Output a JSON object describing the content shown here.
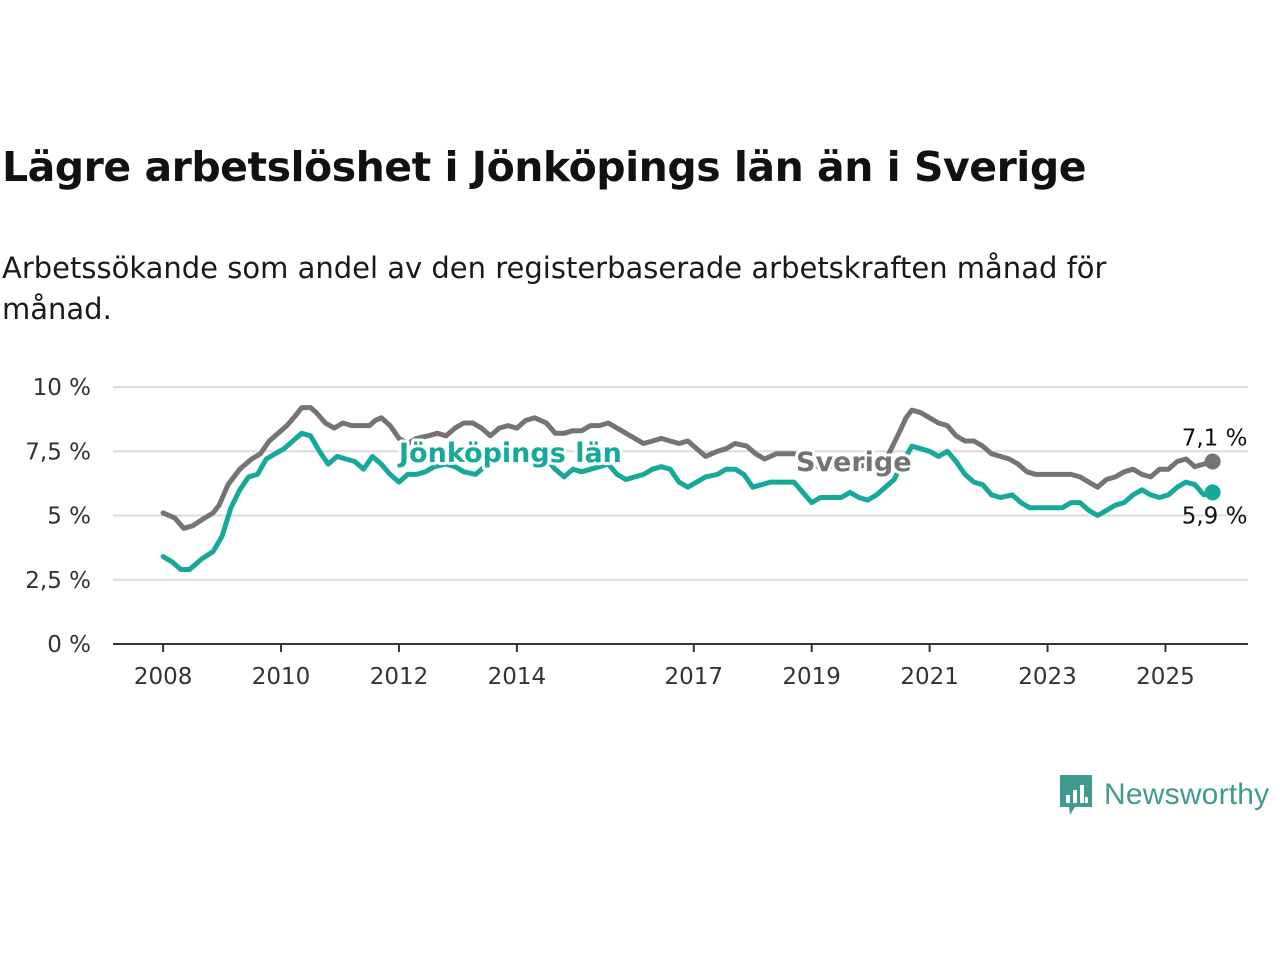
{
  "title": "Lägre arbetslöshet i Jönköpings län än i Sverige",
  "subtitle": "Arbetssökande som andel av den registerbaserade arbetskraften månad för månad.",
  "brand": "Newsworthy",
  "chart_data": {
    "type": "line",
    "ylim": [
      0,
      10
    ],
    "y_ticks": [
      {
        "value": 0,
        "label": "0 %"
      },
      {
        "value": 2.5,
        "label": "2,5 %"
      },
      {
        "value": 5,
        "label": "5 %"
      },
      {
        "value": 7.5,
        "label": "7,5 %"
      },
      {
        "value": 10,
        "label": "10 %"
      }
    ],
    "xlim": [
      2007.15,
      2026.4
    ],
    "x_ticks": [
      {
        "value": 2008,
        "label": "2008"
      },
      {
        "value": 2010,
        "label": "2010"
      },
      {
        "value": 2012,
        "label": "2012"
      },
      {
        "value": 2014,
        "label": "2014"
      },
      {
        "value": 2017,
        "label": "2017"
      },
      {
        "value": 2019,
        "label": "2019"
      },
      {
        "value": 2021,
        "label": "2021"
      },
      {
        "value": 2023,
        "label": "2023"
      },
      {
        "value": 2025,
        "label": "2025"
      }
    ],
    "grid": true,
    "series": [
      {
        "name": "Sverige",
        "color": "#747474",
        "end_label": "7,1 %",
        "points": [
          [
            2008.0,
            5.1
          ],
          [
            2008.2,
            4.9
          ],
          [
            2008.35,
            4.5
          ],
          [
            2008.5,
            4.6
          ],
          [
            2008.7,
            4.9
          ],
          [
            2008.85,
            5.1
          ],
          [
            2008.95,
            5.4
          ],
          [
            2009.1,
            6.2
          ],
          [
            2009.3,
            6.8
          ],
          [
            2009.5,
            7.2
          ],
          [
            2009.65,
            7.4
          ],
          [
            2009.8,
            7.9
          ],
          [
            2009.95,
            8.2
          ],
          [
            2010.1,
            8.5
          ],
          [
            2010.25,
            8.9
          ],
          [
            2010.35,
            9.2
          ],
          [
            2010.5,
            9.2
          ],
          [
            2010.6,
            9.0
          ],
          [
            2010.75,
            8.6
          ],
          [
            2010.9,
            8.4
          ],
          [
            2011.05,
            8.6
          ],
          [
            2011.2,
            8.5
          ],
          [
            2011.35,
            8.5
          ],
          [
            2011.5,
            8.5
          ],
          [
            2011.6,
            8.7
          ],
          [
            2011.7,
            8.8
          ],
          [
            2011.85,
            8.5
          ],
          [
            2012.0,
            8.0
          ],
          [
            2012.15,
            7.8
          ],
          [
            2012.3,
            8.0
          ],
          [
            2012.5,
            8.1
          ],
          [
            2012.65,
            8.2
          ],
          [
            2012.8,
            8.1
          ],
          [
            2012.95,
            8.4
          ],
          [
            2013.1,
            8.6
          ],
          [
            2013.25,
            8.6
          ],
          [
            2013.4,
            8.4
          ],
          [
            2013.55,
            8.1
          ],
          [
            2013.7,
            8.4
          ],
          [
            2013.85,
            8.5
          ],
          [
            2014.0,
            8.4
          ],
          [
            2014.15,
            8.7
          ],
          [
            2014.3,
            8.8
          ],
          [
            2014.5,
            8.6
          ],
          [
            2014.65,
            8.2
          ],
          [
            2014.8,
            8.2
          ],
          [
            2014.95,
            8.3
          ],
          [
            2015.1,
            8.3
          ],
          [
            2015.25,
            8.5
          ],
          [
            2015.4,
            8.5
          ],
          [
            2015.55,
            8.6
          ],
          [
            2015.7,
            8.4
          ],
          [
            2015.85,
            8.2
          ],
          [
            2016.0,
            8.0
          ],
          [
            2016.15,
            7.8
          ],
          [
            2016.3,
            7.9
          ],
          [
            2016.45,
            8.0
          ],
          [
            2016.6,
            7.9
          ],
          [
            2016.75,
            7.8
          ],
          [
            2016.9,
            7.9
          ],
          [
            2017.05,
            7.6
          ],
          [
            2017.2,
            7.3
          ],
          [
            2017.4,
            7.5
          ],
          [
            2017.55,
            7.6
          ],
          [
            2017.7,
            7.8
          ],
          [
            2017.9,
            7.7
          ],
          [
            2018.05,
            7.4
          ],
          [
            2018.2,
            7.2
          ],
          [
            2018.4,
            7.4
          ],
          [
            2018.55,
            7.4
          ],
          [
            2018.7,
            7.4
          ],
          [
            2018.85,
            7.3
          ],
          [
            2019.0,
            7.2
          ],
          [
            2019.15,
            6.8
          ],
          [
            2019.3,
            6.9
          ],
          [
            2019.5,
            7.0
          ],
          [
            2019.65,
            7.0
          ],
          [
            2019.8,
            6.9
          ],
          [
            2019.95,
            7.0
          ],
          [
            2020.1,
            7.0
          ],
          [
            2020.2,
            6.9
          ],
          [
            2020.35,
            7.6
          ],
          [
            2020.5,
            8.3
          ],
          [
            2020.6,
            8.8
          ],
          [
            2020.7,
            9.1
          ],
          [
            2020.85,
            9.0
          ],
          [
            2021.0,
            8.8
          ],
          [
            2021.15,
            8.6
          ],
          [
            2021.3,
            8.5
          ],
          [
            2021.45,
            8.1
          ],
          [
            2021.6,
            7.9
          ],
          [
            2021.75,
            7.9
          ],
          [
            2021.9,
            7.7
          ],
          [
            2022.05,
            7.4
          ],
          [
            2022.2,
            7.3
          ],
          [
            2022.35,
            7.2
          ],
          [
            2022.5,
            7.0
          ],
          [
            2022.65,
            6.7
          ],
          [
            2022.8,
            6.6
          ],
          [
            2022.95,
            6.6
          ],
          [
            2023.1,
            6.6
          ],
          [
            2023.25,
            6.6
          ],
          [
            2023.4,
            6.6
          ],
          [
            2023.55,
            6.5
          ],
          [
            2023.7,
            6.3
          ],
          [
            2023.85,
            6.1
          ],
          [
            2024.0,
            6.4
          ],
          [
            2024.15,
            6.5
          ],
          [
            2024.3,
            6.7
          ],
          [
            2024.45,
            6.8
          ],
          [
            2024.6,
            6.6
          ],
          [
            2024.75,
            6.5
          ],
          [
            2024.9,
            6.8
          ],
          [
            2025.05,
            6.8
          ],
          [
            2025.2,
            7.1
          ],
          [
            2025.35,
            7.2
          ],
          [
            2025.5,
            6.9
          ],
          [
            2025.65,
            7.0
          ],
          [
            2025.8,
            7.1
          ]
        ]
      },
      {
        "name": "Jönköpings län",
        "color": "#16a99a",
        "end_label": "5,9 %",
        "points": [
          [
            2008.0,
            3.4
          ],
          [
            2008.15,
            3.2
          ],
          [
            2008.3,
            2.9
          ],
          [
            2008.45,
            2.9
          ],
          [
            2008.65,
            3.3
          ],
          [
            2008.85,
            3.6
          ],
          [
            2009.0,
            4.2
          ],
          [
            2009.15,
            5.3
          ],
          [
            2009.3,
            6.0
          ],
          [
            2009.45,
            6.5
          ],
          [
            2009.6,
            6.6
          ],
          [
            2009.75,
            7.2
          ],
          [
            2009.9,
            7.4
          ],
          [
            2010.05,
            7.6
          ],
          [
            2010.2,
            7.9
          ],
          [
            2010.35,
            8.2
          ],
          [
            2010.5,
            8.1
          ],
          [
            2010.65,
            7.5
          ],
          [
            2010.8,
            7.0
          ],
          [
            2010.95,
            7.3
          ],
          [
            2011.1,
            7.2
          ],
          [
            2011.25,
            7.1
          ],
          [
            2011.4,
            6.8
          ],
          [
            2011.55,
            7.3
          ],
          [
            2011.7,
            7.0
          ],
          [
            2011.85,
            6.6
          ],
          [
            2012.0,
            6.3
          ],
          [
            2012.15,
            6.6
          ],
          [
            2012.3,
            6.6
          ],
          [
            2012.45,
            6.7
          ],
          [
            2012.6,
            6.9
          ],
          [
            2012.8,
            7.0
          ],
          [
            2012.95,
            6.9
          ],
          [
            2013.1,
            6.7
          ],
          [
            2013.3,
            6.6
          ],
          [
            2013.45,
            6.9
          ],
          [
            2013.6,
            7.3
          ],
          [
            2013.75,
            7.2
          ],
          [
            2013.9,
            7.4
          ],
          [
            2014.05,
            7.3
          ],
          [
            2014.2,
            7.3
          ],
          [
            2014.35,
            7.5
          ],
          [
            2014.5,
            7.2
          ],
          [
            2014.65,
            6.8
          ],
          [
            2014.8,
            6.5
          ],
          [
            2014.95,
            6.8
          ],
          [
            2015.1,
            6.7
          ],
          [
            2015.25,
            6.8
          ],
          [
            2015.4,
            6.9
          ],
          [
            2015.55,
            7.0
          ],
          [
            2015.7,
            6.6
          ],
          [
            2015.85,
            6.4
          ],
          [
            2016.0,
            6.5
          ],
          [
            2016.15,
            6.6
          ],
          [
            2016.3,
            6.8
          ],
          [
            2016.45,
            6.9
          ],
          [
            2016.6,
            6.8
          ],
          [
            2016.75,
            6.3
          ],
          [
            2016.9,
            6.1
          ],
          [
            2017.05,
            6.3
          ],
          [
            2017.2,
            6.5
          ],
          [
            2017.4,
            6.6
          ],
          [
            2017.55,
            6.8
          ],
          [
            2017.7,
            6.8
          ],
          [
            2017.85,
            6.6
          ],
          [
            2018.0,
            6.1
          ],
          [
            2018.15,
            6.2
          ],
          [
            2018.3,
            6.3
          ],
          [
            2018.5,
            6.3
          ],
          [
            2018.7,
            6.3
          ],
          [
            2018.85,
            5.9
          ],
          [
            2019.0,
            5.5
          ],
          [
            2019.15,
            5.7
          ],
          [
            2019.3,
            5.7
          ],
          [
            2019.5,
            5.7
          ],
          [
            2019.65,
            5.9
          ],
          [
            2019.8,
            5.7
          ],
          [
            2019.95,
            5.6
          ],
          [
            2020.1,
            5.8
          ],
          [
            2020.25,
            6.1
          ],
          [
            2020.4,
            6.4
          ],
          [
            2020.55,
            7.1
          ],
          [
            2020.7,
            7.7
          ],
          [
            2020.85,
            7.6
          ],
          [
            2021.0,
            7.5
          ],
          [
            2021.15,
            7.3
          ],
          [
            2021.3,
            7.5
          ],
          [
            2021.45,
            7.1
          ],
          [
            2021.6,
            6.6
          ],
          [
            2021.75,
            6.3
          ],
          [
            2021.9,
            6.2
          ],
          [
            2022.05,
            5.8
          ],
          [
            2022.2,
            5.7
          ],
          [
            2022.4,
            5.8
          ],
          [
            2022.55,
            5.5
          ],
          [
            2022.7,
            5.3
          ],
          [
            2022.9,
            5.3
          ],
          [
            2023.1,
            5.3
          ],
          [
            2023.25,
            5.3
          ],
          [
            2023.4,
            5.5
          ],
          [
            2023.55,
            5.5
          ],
          [
            2023.7,
            5.2
          ],
          [
            2023.85,
            5.0
          ],
          [
            2024.0,
            5.2
          ],
          [
            2024.15,
            5.4
          ],
          [
            2024.3,
            5.5
          ],
          [
            2024.45,
            5.8
          ],
          [
            2024.6,
            6.0
          ],
          [
            2024.75,
            5.8
          ],
          [
            2024.9,
            5.7
          ],
          [
            2025.05,
            5.8
          ],
          [
            2025.2,
            6.1
          ],
          [
            2025.35,
            6.3
          ],
          [
            2025.5,
            6.2
          ],
          [
            2025.65,
            5.8
          ],
          [
            2025.8,
            5.9
          ]
        ]
      }
    ]
  }
}
